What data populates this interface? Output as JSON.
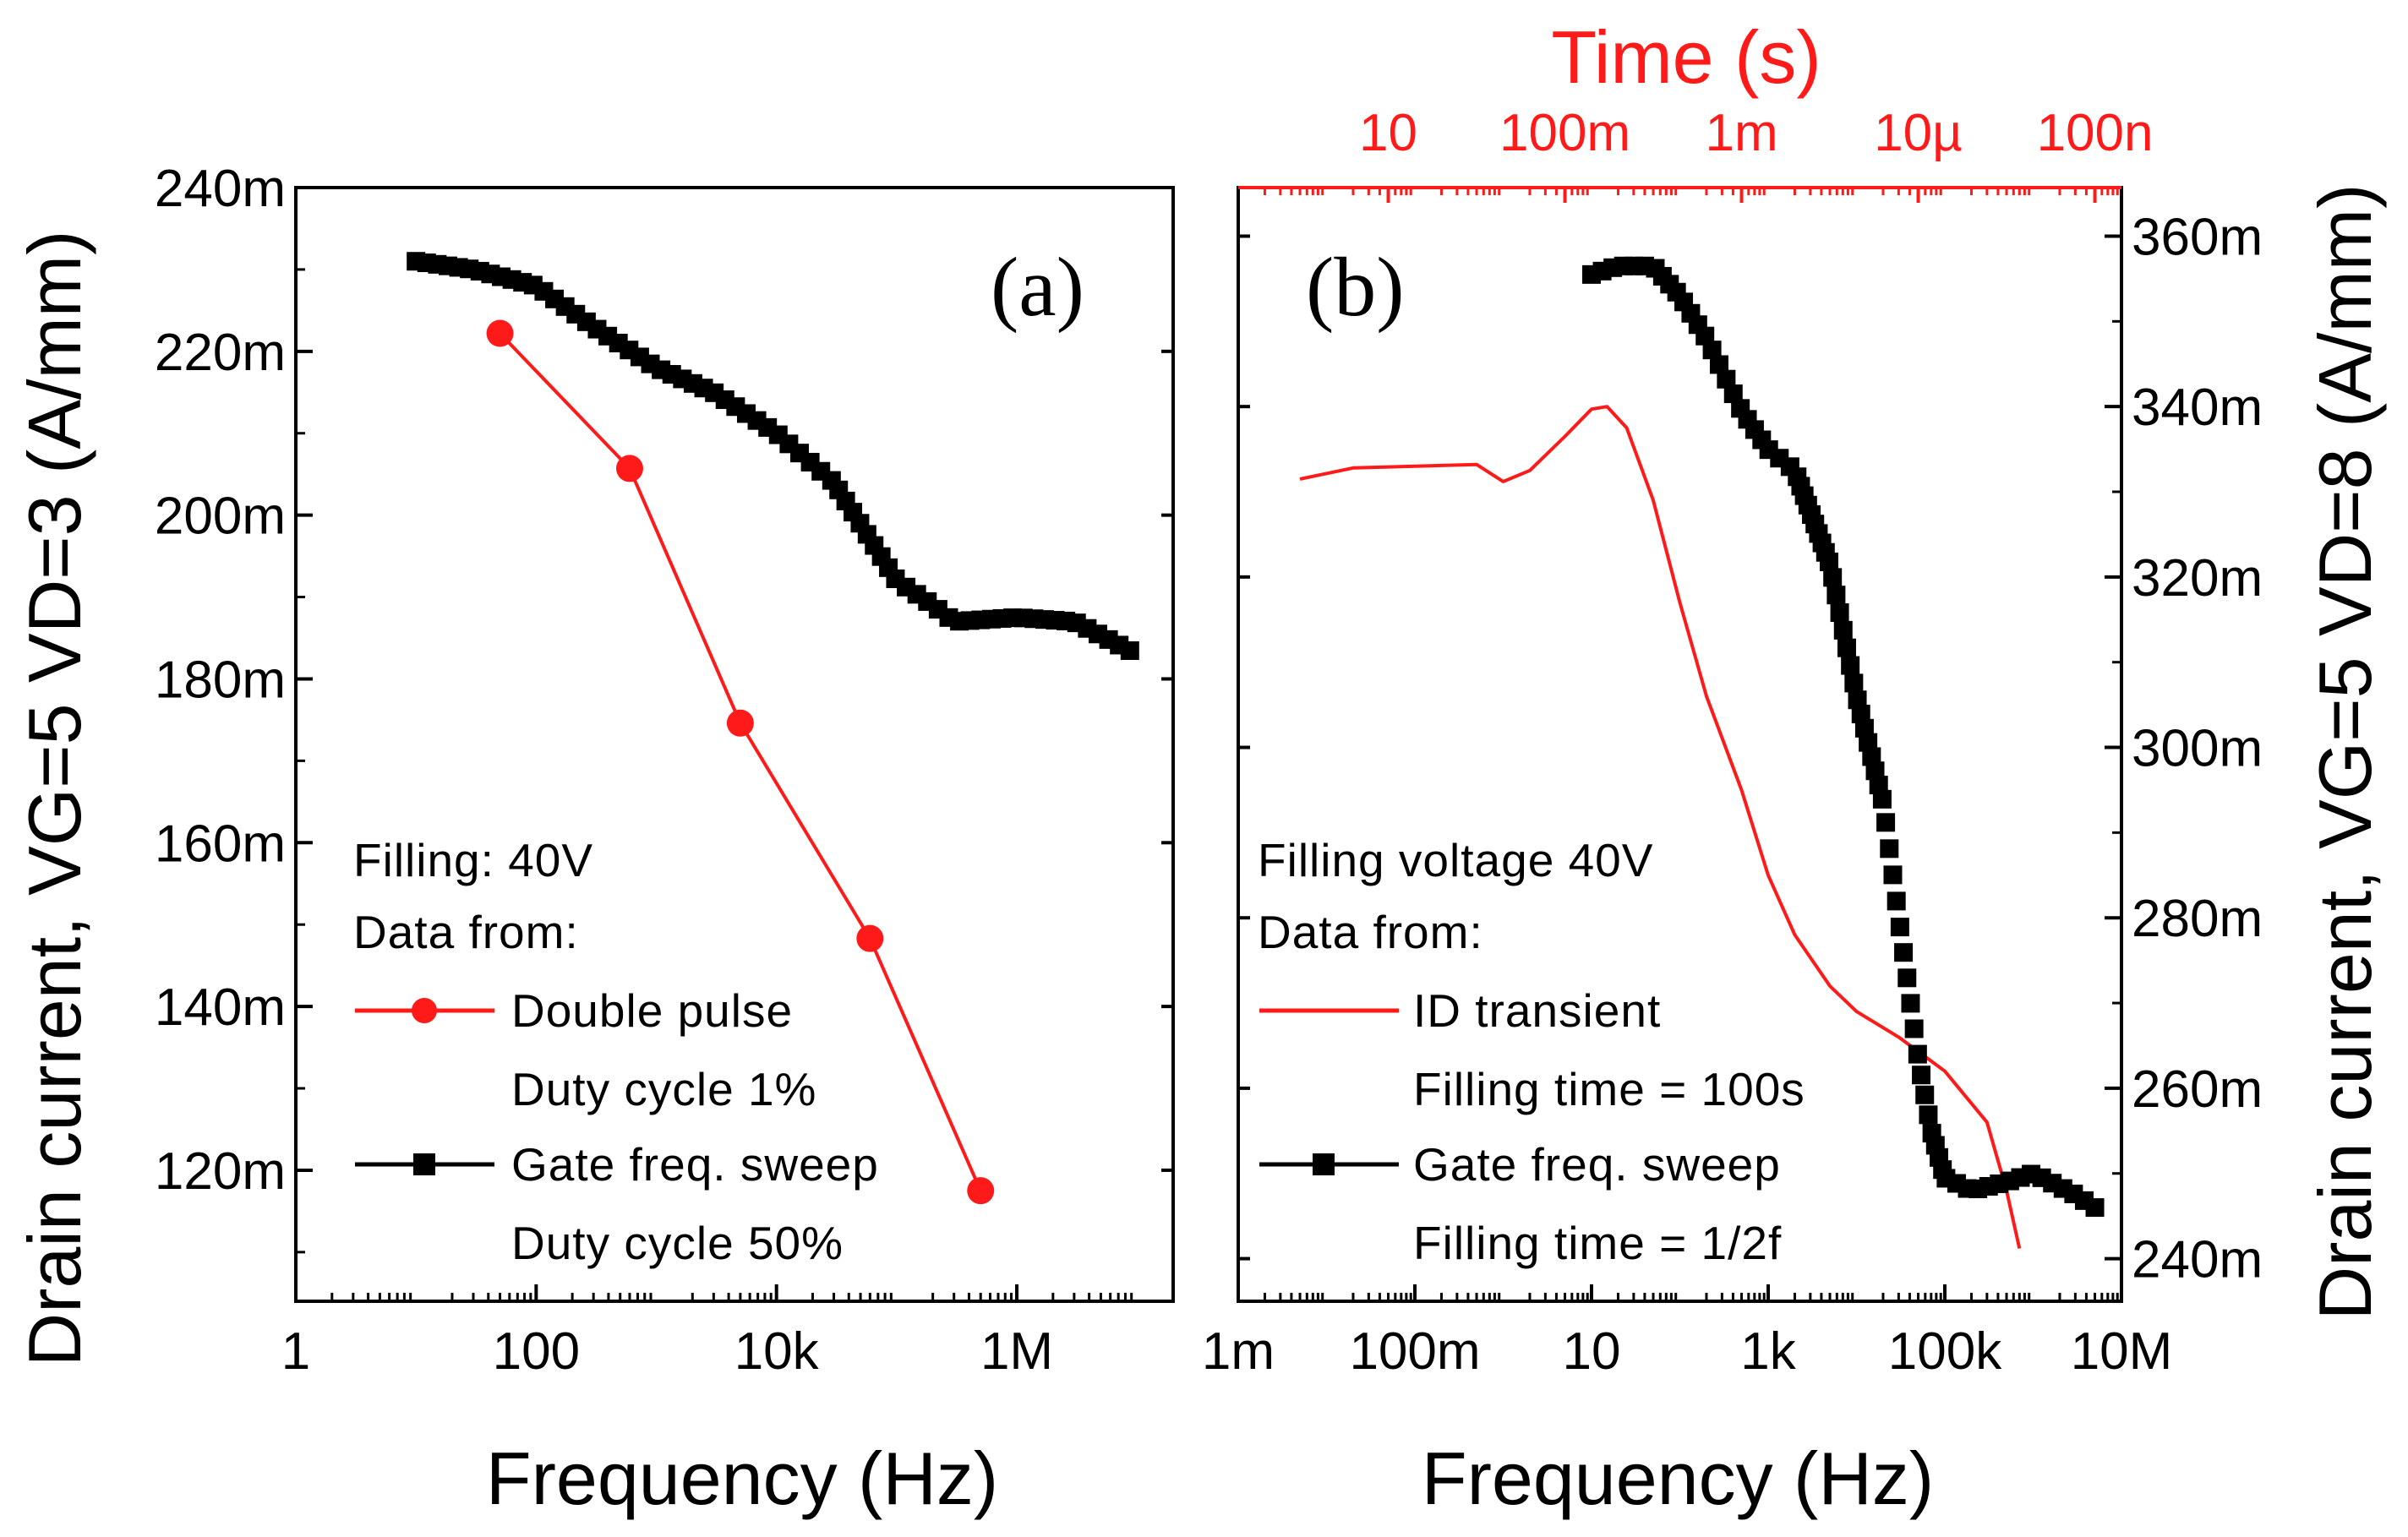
{
  "chart_data": [
    {
      "panel": "(a)",
      "type": "line",
      "xlabel": "Frequency (Hz)",
      "ylabel": "Drain current, VG=5 VD=3 (A/mm)",
      "xscale": "log",
      "xlim": [
        1,
        20000000
      ],
      "ylim": [
        0.104,
        0.24
      ],
      "x_tick_values": [
        1,
        100,
        10000,
        1000000
      ],
      "x_tick_labels": [
        "1",
        "100",
        "10k",
        "1M"
      ],
      "y_tick_values": [
        0.12,
        0.14,
        0.16,
        0.18,
        0.2,
        0.22,
        0.24
      ],
      "y_tick_labels": [
        "120m",
        "140m",
        "160m",
        "180m",
        "200m",
        "220m",
        "240m"
      ],
      "legend_header": [
        "Filling: 40V",
        "Data from:"
      ],
      "series": [
        {
          "name": "Double pulse",
          "sublabel": "Duty cycle 1%",
          "color": "#ff1a1a",
          "marker": "circle",
          "x": [
            50,
            600,
            5000,
            60000,
            500000
          ],
          "y": [
            0.2222,
            0.2057,
            0.1746,
            0.1483,
            0.1175
          ]
        },
        {
          "name": "Gate freq. sweep",
          "sublabel": "Duty cycle 50%",
          "color": "#000000",
          "marker": "square",
          "x": [
            10,
            30,
            100,
            300,
            1000,
            3000,
            10000,
            30000,
            100000,
            200000,
            300000,
            1000000,
            3000000,
            10000000
          ],
          "y": [
            0.231,
            0.23,
            0.228,
            0.223,
            0.218,
            0.215,
            0.21,
            0.204,
            0.192,
            0.189,
            0.187,
            0.1875,
            0.187,
            0.183
          ]
        }
      ]
    },
    {
      "panel": "(b)",
      "type": "line",
      "xlabel": "Frequency (Hz)",
      "ylabel": "Drain current, VG=5 VD=8 (A/mm)",
      "top_axis_label": "Time (s)",
      "xscale": "log",
      "xlim": [
        0.001,
        10000000
      ],
      "ylim": [
        0.235,
        0.3657
      ],
      "x_tick_values": [
        0.001,
        0.1,
        10,
        1000,
        100000,
        10000000
      ],
      "x_tick_labels": [
        "1m",
        "100m",
        "10",
        "1k",
        "100k",
        "10M"
      ],
      "top_tick_values": [
        0.05,
        5,
        500,
        50000,
        5000000
      ],
      "top_tick_labels": [
        "10",
        "100m",
        "1m",
        "10µ",
        "100n"
      ],
      "y_tick_values": [
        0.24,
        0.26,
        0.28,
        0.3,
        0.32,
        0.34,
        0.36
      ],
      "y_tick_labels": [
        "240m",
        "260m",
        "280m",
        "300m",
        "320m",
        "340m",
        "360m"
      ],
      "legend_header": [
        "Filling voltage 40V",
        "Data from:"
      ],
      "series": [
        {
          "name": "ID transient",
          "sublabel": "Filling time = 100s",
          "color": "#ff1a1a",
          "marker": "none",
          "x": [
            0.005,
            0.02,
            0.1,
            0.5,
            1,
            2,
            5,
            10,
            15,
            25,
            50,
            100,
            200,
            500,
            1000,
            2000,
            5000,
            10000,
            30000,
            100000,
            300000,
            500000,
            700000
          ],
          "y": [
            0.3315,
            0.3328,
            0.333,
            0.3332,
            0.3312,
            0.3325,
            0.3365,
            0.3397,
            0.34,
            0.3375,
            0.329,
            0.317,
            0.306,
            0.295,
            0.285,
            0.278,
            0.272,
            0.269,
            0.266,
            0.262,
            0.256,
            0.248,
            0.2412
          ]
        },
        {
          "name": "Gate freq. sweep",
          "sublabel": "Filling time = 1/2f",
          "color": "#000000",
          "marker": "square",
          "x": [
            10,
            20,
            50,
            100,
            200,
            500,
            1000,
            2000,
            5000,
            10000,
            20000,
            30000,
            50000,
            70000,
            100000,
            200000,
            500000,
            1000000,
            3000000,
            5000000
          ],
          "y": [
            0.3555,
            0.3565,
            0.3565,
            0.353,
            0.348,
            0.3395,
            0.335,
            0.3325,
            0.3215,
            0.306,
            0.2935,
            0.28,
            0.2635,
            0.255,
            0.2495,
            0.248,
            0.249,
            0.25,
            0.2475,
            0.246
          ]
        }
      ]
    }
  ]
}
